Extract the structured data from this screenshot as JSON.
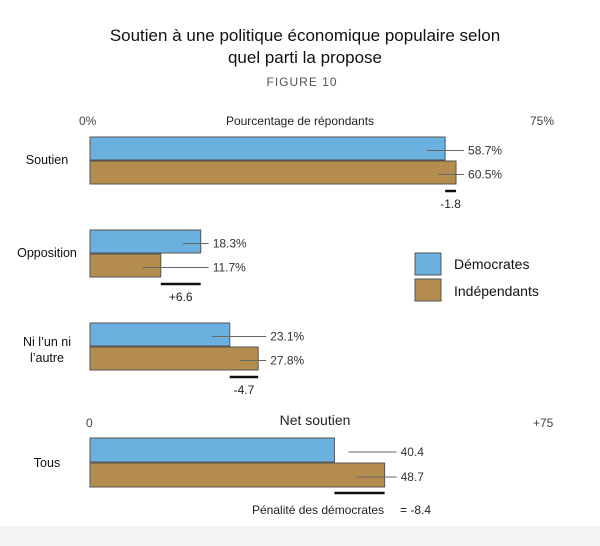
{
  "title_line1": "Soutien à une politique économique populaire selon",
  "title_line2": "quel parti la propose",
  "figure_label": "FIGURE 10",
  "colors": {
    "dem": "#6bb1e0",
    "ind": "#b48c4e",
    "stroke": "#555555"
  },
  "chart_data": [
    {
      "type": "bar",
      "orientation": "horizontal",
      "axis_min_label": "0%",
      "axis_mid_label": "Pourcentage de répondants",
      "axis_max_label": "75%",
      "xlim": [
        0,
        75
      ],
      "legend": [
        "Démocrates",
        "Indépendants"
      ],
      "legend_position": "right",
      "groups": [
        {
          "label": "Soutien",
          "dem": 58.7,
          "ind": 60.5,
          "dem_label": "58.7%",
          "ind_label": "60.5%",
          "diff_label": "-1.8"
        },
        {
          "label": "Opposition",
          "dem": 18.3,
          "ind": 11.7,
          "dem_label": "18.3%",
          "ind_label": "11.7%",
          "diff_label": "+6.6"
        },
        {
          "label_line1": "Ni l’un ni",
          "label_line2": "l’autre",
          "dem": 23.1,
          "ind": 27.8,
          "dem_label": "23.1%",
          "ind_label": "27.8%",
          "diff_label": "-4.7"
        }
      ]
    },
    {
      "type": "bar",
      "orientation": "horizontal",
      "axis_min_label": "0",
      "axis_mid_label": "Net soutien",
      "axis_max_label": "+75",
      "xlim": [
        0,
        75
      ],
      "group": {
        "label": "Tous",
        "dem": 40.4,
        "ind": 48.7,
        "dem_label": "40.4",
        "ind_label": "48.7"
      },
      "penalty_label": "Pénalité des démocrates",
      "penalty_value": "= -8.4"
    }
  ]
}
